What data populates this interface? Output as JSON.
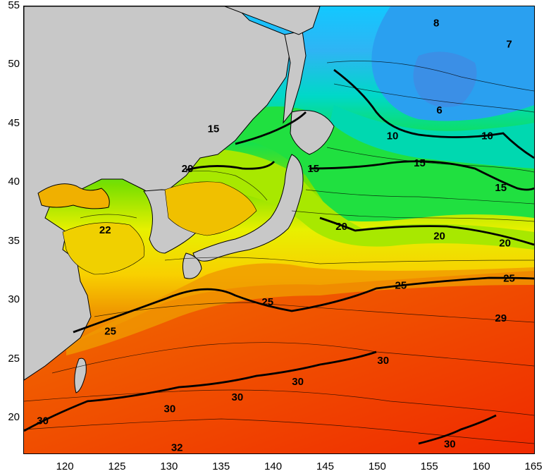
{
  "map": {
    "x_ticks": [
      "120",
      "125",
      "130",
      "135",
      "140",
      "145",
      "150",
      "155",
      "160",
      "165"
    ],
    "y_ticks": [
      "55",
      "50",
      "45",
      "40",
      "35",
      "30",
      "25",
      "20"
    ],
    "land_color": "#c8c8c8",
    "ocean_palette": [
      "#2f8fe8",
      "#12c8ff",
      "#00e0b0",
      "#10e050",
      "#55dd10",
      "#a8e800",
      "#f0f000",
      "#f8d000",
      "#f09000",
      "#f06000",
      "#f03000"
    ],
    "contour_labels": [
      {
        "text": "8",
        "lon": 155.6,
        "lat": 53.6
      },
      {
        "text": "7",
        "lon": 162.6,
        "lat": 51.8
      },
      {
        "text": "6",
        "lon": 155.9,
        "lat": 46.2
      },
      {
        "text": "15",
        "lon": 134.2,
        "lat": 44.6
      },
      {
        "text": "10",
        "lon": 151.4,
        "lat": 44.0
      },
      {
        "text": "10",
        "lon": 160.5,
        "lat": 44.0
      },
      {
        "text": "20",
        "lon": 131.7,
        "lat": 41.2
      },
      {
        "text": "15",
        "lon": 143.8,
        "lat": 41.2
      },
      {
        "text": "15",
        "lon": 154.0,
        "lat": 41.7
      },
      {
        "text": "15",
        "lon": 161.8,
        "lat": 39.6
      },
      {
        "text": "22",
        "lon": 123.8,
        "lat": 36.0
      },
      {
        "text": "20",
        "lon": 146.5,
        "lat": 36.3
      },
      {
        "text": "20",
        "lon": 155.9,
        "lat": 35.5
      },
      {
        "text": "20",
        "lon": 162.2,
        "lat": 34.9
      },
      {
        "text": "25",
        "lon": 152.2,
        "lat": 31.3
      },
      {
        "text": "25",
        "lon": 162.6,
        "lat": 31.9
      },
      {
        "text": "25",
        "lon": 139.4,
        "lat": 29.9
      },
      {
        "text": "25",
        "lon": 124.3,
        "lat": 27.4
      },
      {
        "text": "29",
        "lon": 161.8,
        "lat": 28.5
      },
      {
        "text": "30",
        "lon": 150.5,
        "lat": 24.9
      },
      {
        "text": "30",
        "lon": 142.3,
        "lat": 23.1
      },
      {
        "text": "30",
        "lon": 136.5,
        "lat": 21.8
      },
      {
        "text": "30",
        "lon": 130.0,
        "lat": 20.8
      },
      {
        "text": "30",
        "lon": 117.8,
        "lat": 19.8
      },
      {
        "text": "32",
        "lon": 130.7,
        "lat": 17.5
      },
      {
        "text": "30",
        "lon": 156.9,
        "lat": 17.8
      }
    ]
  }
}
